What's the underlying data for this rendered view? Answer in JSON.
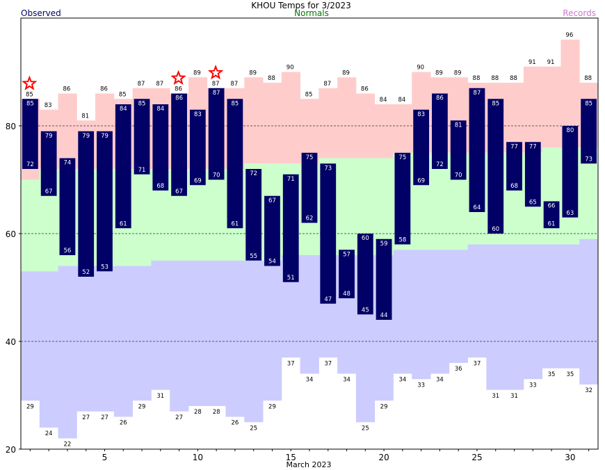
{
  "chart_data": {
    "type": "bar",
    "title": "KHOU Temps for 3/2023",
    "xlabel": "March 2023",
    "ylabel": "",
    "legend": {
      "observed": "Observed",
      "normals": "Normals",
      "records": "Records"
    },
    "ylim": [
      20,
      100
    ],
    "yticks": [
      20,
      40,
      60,
      80
    ],
    "xlim": [
      0.5,
      31.5
    ],
    "xticks": [
      5,
      10,
      15,
      20,
      25,
      30
    ],
    "grid_lines_y": [
      40,
      60,
      80
    ],
    "days": [
      1,
      2,
      3,
      4,
      5,
      6,
      7,
      8,
      9,
      10,
      11,
      12,
      13,
      14,
      15,
      16,
      17,
      18,
      19,
      20,
      21,
      22,
      23,
      24,
      25,
      26,
      27,
      28,
      29,
      30,
      31
    ],
    "series": [
      {
        "name": "Observed",
        "kind": "range",
        "color": "#000066",
        "high": [
          85,
          79,
          74,
          79,
          79,
          84,
          85,
          84,
          86,
          83,
          87,
          85,
          72,
          67,
          71,
          75,
          73,
          57,
          60,
          59,
          75,
          83,
          86,
          81,
          87,
          85,
          77,
          77,
          66,
          80,
          85
        ],
        "low": [
          72,
          67,
          56,
          52,
          53,
          61,
          71,
          68,
          67,
          69,
          70,
          61,
          55,
          54,
          51,
          62,
          47,
          48,
          45,
          44,
          58,
          69,
          72,
          70,
          64,
          60,
          68,
          65,
          61,
          63,
          73
        ]
      },
      {
        "name": "Normals",
        "kind": "range",
        "color": "#ccffcc",
        "high": [
          70,
          72,
          72,
          72,
          72,
          72,
          72,
          72,
          72,
          72,
          72,
          72,
          73,
          73,
          73,
          73,
          74,
          74,
          74,
          74,
          75,
          75,
          75,
          75,
          75,
          75,
          75,
          75,
          76,
          76,
          76
        ],
        "low": [
          53,
          53,
          54,
          54,
          54,
          54,
          54,
          55,
          55,
          55,
          55,
          55,
          55,
          55,
          56,
          56,
          56,
          56,
          56,
          56,
          57,
          57,
          57,
          57,
          58,
          58,
          58,
          58,
          58,
          58,
          59
        ]
      },
      {
        "name": "Records",
        "kind": "range",
        "high_color": "#ffcccc",
        "low_color": "#ccccff",
        "high": [
          85,
          83,
          86,
          81,
          86,
          85,
          87,
          87,
          86,
          89,
          87,
          87,
          89,
          88,
          90,
          85,
          87,
          89,
          86,
          84,
          84,
          90,
          89,
          89,
          88,
          88,
          88,
          91,
          91,
          96,
          88
        ],
        "low": [
          29,
          24,
          22,
          27,
          27,
          26,
          29,
          31,
          27,
          28,
          28,
          26,
          25,
          29,
          37,
          34,
          37,
          34,
          25,
          29,
          34,
          33,
          34,
          36,
          37,
          31,
          31,
          33,
          35,
          35,
          32
        ]
      }
    ],
    "record_high_markers": [
      1,
      9,
      11
    ],
    "marker_color": "#ff0000"
  }
}
